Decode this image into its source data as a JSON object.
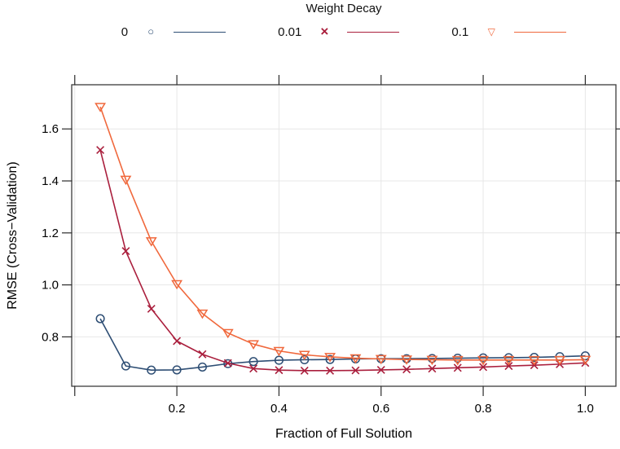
{
  "figure": {
    "title": "Weight Decay",
    "x_axis_label": "Fraction of Full Solution",
    "y_axis_label": "RMSE (Cross−Validation)"
  },
  "legend": {
    "title": "Weight Decay",
    "position": "top",
    "items": [
      {
        "label": "0",
        "glyph": "○",
        "marker": "circle",
        "color": "#2e4e74"
      },
      {
        "label": "0.01",
        "glyph": "×",
        "marker": "x",
        "color": "#aa1f3d"
      },
      {
        "label": "0.1",
        "glyph": "▽",
        "marker": "triangle-down",
        "color": "#f0683c"
      }
    ]
  },
  "chart_data": {
    "type": "line",
    "title": "Weight Decay",
    "xlabel": "Fraction of Full Solution",
    "ylabel": "RMSE (Cross−Validation)",
    "xlim": [
      -0.006,
      1.06
    ],
    "ylim": [
      0.61,
      1.77
    ],
    "grid": true,
    "grid_color": "#e7e7e7",
    "border_color": "#3b3b3b",
    "tick_color": "#2b2b2b",
    "legend_position": "top",
    "x_ticks": [
      {
        "value": 0.0,
        "label": ""
      },
      {
        "value": 0.2,
        "label": "0.2"
      },
      {
        "value": 0.4,
        "label": "0.4"
      },
      {
        "value": 0.6,
        "label": "0.6"
      },
      {
        "value": 0.8,
        "label": "0.8"
      },
      {
        "value": 1.0,
        "label": "1.0"
      }
    ],
    "y_ticks": [
      {
        "value": 0.8,
        "label": "0.8"
      },
      {
        "value": 1.0,
        "label": "1.0"
      },
      {
        "value": 1.2,
        "label": "1.2"
      },
      {
        "value": 1.4,
        "label": "1.4"
      },
      {
        "value": 1.6,
        "label": "1.6"
      }
    ],
    "x": [
      0.05,
      0.1,
      0.15,
      0.2,
      0.25,
      0.3,
      0.35,
      0.4,
      0.45,
      0.5,
      0.55,
      0.6,
      0.65,
      0.7,
      0.75,
      0.8,
      0.85,
      0.9,
      0.95,
      1.0
    ],
    "series": [
      {
        "name": "0",
        "weight_decay": 0,
        "color": "#2e4e74",
        "marker": "circle",
        "values": [
          0.87,
          0.688,
          0.672,
          0.673,
          0.684,
          0.697,
          0.705,
          0.71,
          0.712,
          0.713,
          0.715,
          0.716,
          0.716,
          0.717,
          0.718,
          0.719,
          0.72,
          0.721,
          0.724,
          0.727
        ]
      },
      {
        "name": "0.01",
        "weight_decay": 0.01,
        "color": "#aa1f3d",
        "marker": "x",
        "values": [
          1.519,
          1.13,
          0.908,
          0.784,
          0.733,
          0.699,
          0.678,
          0.672,
          0.67,
          0.67,
          0.671,
          0.673,
          0.675,
          0.678,
          0.681,
          0.684,
          0.688,
          0.691,
          0.695,
          0.7
        ]
      },
      {
        "name": "0.1",
        "weight_decay": 0.1,
        "color": "#f0683c",
        "marker": "triangle-down",
        "values": [
          1.685,
          1.405,
          1.168,
          1.003,
          0.89,
          0.815,
          0.772,
          0.746,
          0.731,
          0.723,
          0.718,
          0.715,
          0.713,
          0.712,
          0.711,
          0.711,
          0.711,
          0.711,
          0.711,
          0.712
        ]
      }
    ]
  }
}
